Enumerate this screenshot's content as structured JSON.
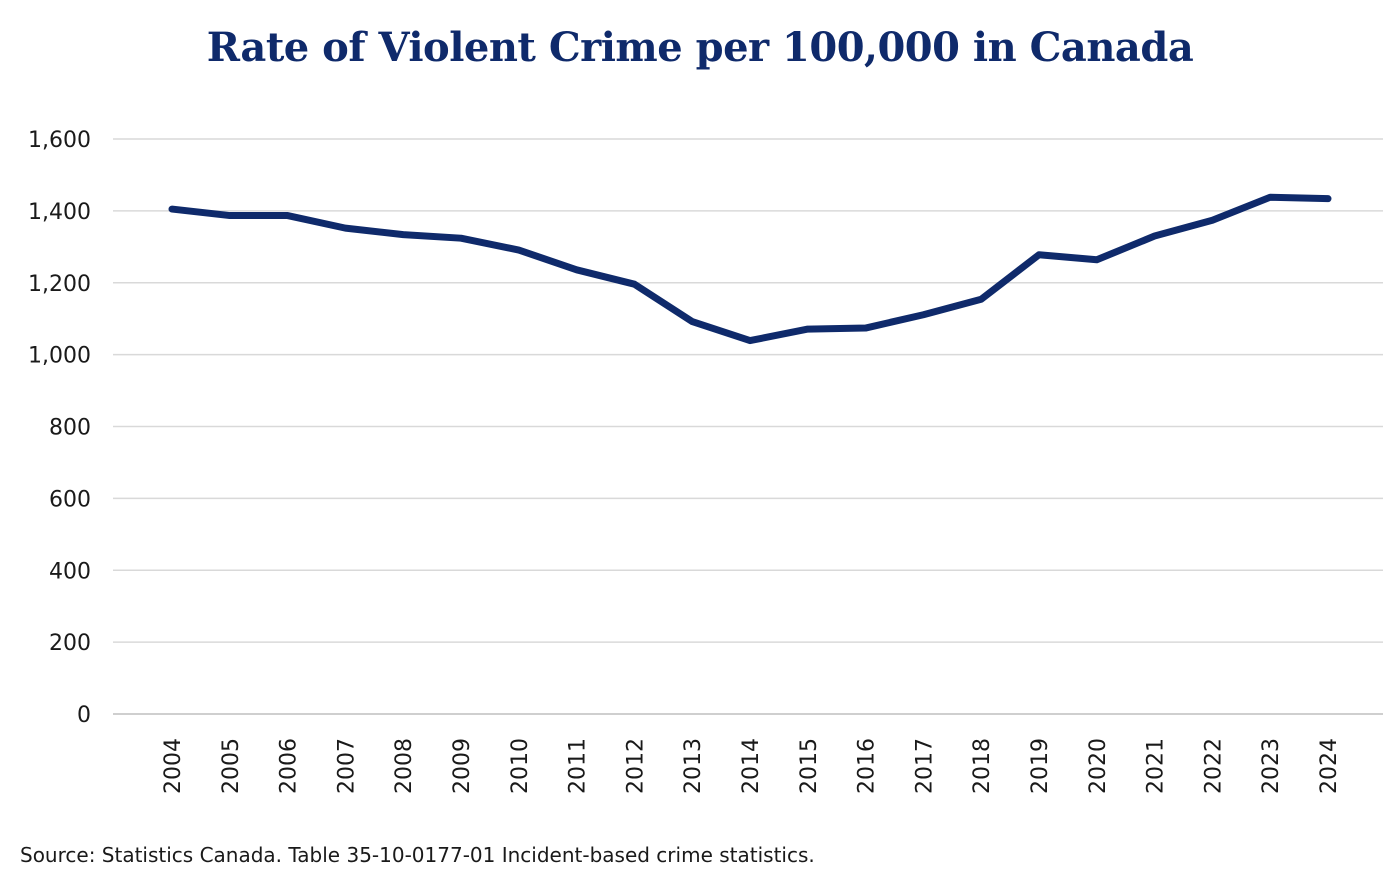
{
  "chart_data": {
    "type": "line",
    "title": "Rate of Violent Crime per 100,000 in Canada",
    "xlabel": "",
    "ylabel": "",
    "x": [
      "2004",
      "2005",
      "2006",
      "2007",
      "2008",
      "2009",
      "2010",
      "2011",
      "2012",
      "2013",
      "2014",
      "2015",
      "2016",
      "2017",
      "2018",
      "2019",
      "2020",
      "2021",
      "2022",
      "2023",
      "2024"
    ],
    "series": [
      {
        "values": [
          1405,
          1387,
          1387,
          1352,
          1334,
          1324,
          1291,
          1236,
          1196,
          1092,
          1039,
          1071,
          1074,
          1111,
          1154,
          1278,
          1264,
          1330,
          1374,
          1438,
          1434
        ]
      }
    ],
    "ylim": [
      0,
      1600
    ],
    "yticks": [
      "0",
      "200",
      "400",
      "600",
      "800",
      "1,000",
      "1,200",
      "1,400",
      "1,600"
    ],
    "grid": true,
    "legend": "none",
    "line_color": "#0f2a6b",
    "grid_color": "#d9d9d9"
  },
  "source": "Source: Statistics Canada. Table 35-10-0177-01 Incident-based crime statistics."
}
